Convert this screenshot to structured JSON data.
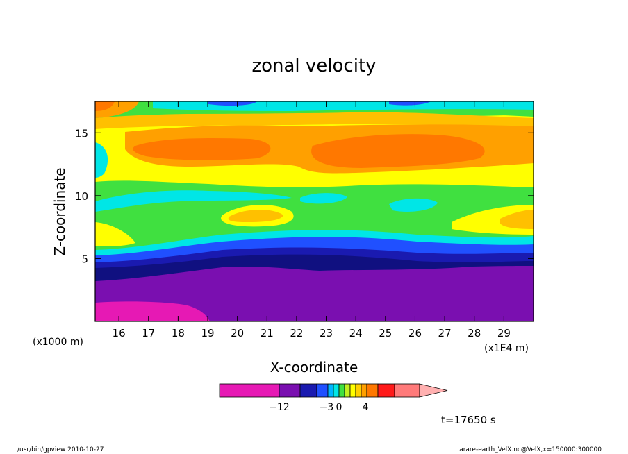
{
  "chart_data": {
    "type": "heatmap",
    "title": "zonal velocity",
    "xlabel": "X-coordinate",
    "ylabel": "Z-coordinate",
    "x_unit_left": "(x1000 m)",
    "x_unit_right": "(x1E4 m)",
    "xlim": [
      15.2,
      30.0
    ],
    "ylim": [
      0.0,
      17.5
    ],
    "x_ticks": [
      16,
      17,
      18,
      19,
      20,
      21,
      22,
      23,
      24,
      25,
      26,
      27,
      28,
      29
    ],
    "y_ticks": [
      5,
      10,
      15
    ],
    "time_label": "t=17650 s",
    "colorbar": {
      "tick_labels": [
        "−12",
        "−3",
        "0",
        "4"
      ],
      "colors": [
        "#e619b4",
        "#7a0fb0",
        "#1a1ab0",
        "#2050ff",
        "#00b4ff",
        "#00e6e6",
        "#40e040",
        "#c0f020",
        "#ffff00",
        "#ffd000",
        "#ffa000",
        "#ff7800",
        "#ff1a1a",
        "#ff7a7a",
        "#ffb0b0"
      ]
    },
    "levels_bottom_to_top": [
      {
        "z": 0.0,
        "value": "magenta"
      },
      {
        "z": 3.0,
        "value": "purple"
      },
      {
        "z": 4.3,
        "value": "dark-blue"
      },
      {
        "z": 5.3,
        "value": "blue"
      },
      {
        "z": 6.5,
        "value": "cyan"
      },
      {
        "z": 7.3,
        "value": "green"
      },
      {
        "z": 10.5,
        "value": "yellow"
      },
      {
        "z": 12.0,
        "value": "orange"
      },
      {
        "z": 14.0,
        "value": "dark-orange"
      },
      {
        "z": 16.0,
        "value": "light-orange"
      },
      {
        "z": 17.0,
        "value": "cyan-top"
      }
    ]
  },
  "footer": {
    "left": "/usr/bin/gpview   2010-10-27",
    "right": "arare-earth_VelX.nc@VelX,x=150000:300000"
  }
}
